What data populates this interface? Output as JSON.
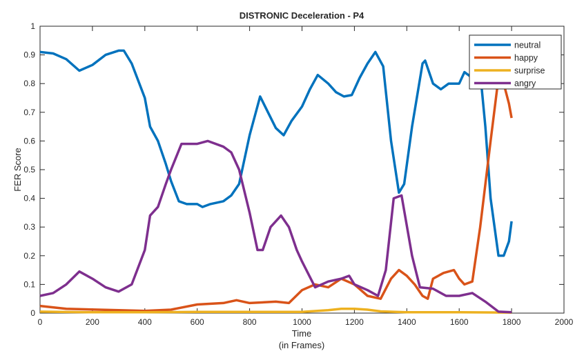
{
  "chart_data": {
    "type": "line",
    "title": "DISTRONIC Deceleration - P4",
    "xlabel": "Time",
    "xlabel2": "(in Frames)",
    "ylabel": "FER Score",
    "xlim": [
      0,
      2000
    ],
    "ylim": [
      0,
      1
    ],
    "xticks": [
      0,
      200,
      400,
      600,
      800,
      1000,
      1200,
      1400,
      1600,
      1800,
      2000
    ],
    "yticks": [
      0,
      0.1,
      0.2,
      0.3,
      0.4,
      0.5,
      0.6,
      0.7,
      0.8,
      0.9,
      1
    ],
    "legend_position": "top-right",
    "series": [
      {
        "name": "neutral",
        "color": "#0072BD",
        "x": [
          0,
          50,
          100,
          150,
          200,
          250,
          300,
          320,
          350,
          400,
          420,
          450,
          480,
          500,
          530,
          560,
          600,
          620,
          650,
          700,
          730,
          760,
          800,
          840,
          870,
          900,
          930,
          960,
          1000,
          1030,
          1060,
          1100,
          1130,
          1160,
          1190,
          1220,
          1250,
          1280,
          1310,
          1340,
          1370,
          1390,
          1420,
          1460,
          1470,
          1500,
          1530,
          1560,
          1600,
          1620,
          1650,
          1680,
          1700,
          1720,
          1750,
          1770,
          1790,
          1800
        ],
        "y": [
          0.91,
          0.905,
          0.885,
          0.845,
          0.865,
          0.9,
          0.915,
          0.915,
          0.87,
          0.75,
          0.65,
          0.6,
          0.52,
          0.46,
          0.39,
          0.38,
          0.38,
          0.37,
          0.38,
          0.39,
          0.41,
          0.45,
          0.62,
          0.755,
          0.7,
          0.645,
          0.62,
          0.67,
          0.72,
          0.78,
          0.83,
          0.8,
          0.77,
          0.755,
          0.76,
          0.82,
          0.87,
          0.91,
          0.86,
          0.6,
          0.42,
          0.45,
          0.65,
          0.87,
          0.88,
          0.8,
          0.78,
          0.8,
          0.8,
          0.84,
          0.82,
          0.84,
          0.65,
          0.4,
          0.2,
          0.2,
          0.25,
          0.32
        ]
      },
      {
        "name": "happy",
        "color": "#D95319",
        "x": [
          0,
          100,
          300,
          400,
          500,
          600,
          700,
          750,
          800,
          900,
          950,
          1000,
          1050,
          1100,
          1150,
          1200,
          1250,
          1300,
          1340,
          1370,
          1400,
          1430,
          1460,
          1480,
          1500,
          1540,
          1580,
          1600,
          1620,
          1650,
          1680,
          1720,
          1750,
          1770,
          1790,
          1800
        ],
        "y": [
          0.025,
          0.015,
          0.01,
          0.008,
          0.012,
          0.03,
          0.035,
          0.045,
          0.035,
          0.04,
          0.035,
          0.08,
          0.1,
          0.09,
          0.12,
          0.1,
          0.06,
          0.05,
          0.12,
          0.15,
          0.13,
          0.1,
          0.06,
          0.05,
          0.12,
          0.14,
          0.15,
          0.12,
          0.1,
          0.11,
          0.3,
          0.6,
          0.82,
          0.8,
          0.73,
          0.68
        ]
      },
      {
        "name": "surprise",
        "color": "#EDB120",
        "x": [
          0,
          200,
          400,
          600,
          800,
          1000,
          1100,
          1150,
          1200,
          1250,
          1300,
          1400,
          1600,
          1800
        ],
        "y": [
          0.005,
          0.003,
          0.003,
          0.004,
          0.004,
          0.004,
          0.01,
          0.015,
          0.015,
          0.012,
          0.006,
          0.003,
          0.003,
          0.002
        ]
      },
      {
        "name": "angry",
        "color": "#7E2F8E",
        "x": [
          0,
          50,
          100,
          150,
          200,
          250,
          300,
          350,
          400,
          420,
          450,
          480,
          500,
          540,
          600,
          640,
          700,
          730,
          760,
          800,
          830,
          850,
          880,
          920,
          950,
          980,
          1000,
          1050,
          1100,
          1150,
          1180,
          1200,
          1250,
          1290,
          1320,
          1350,
          1380,
          1420,
          1450,
          1500,
          1550,
          1600,
          1650,
          1700,
          1750,
          1800
        ],
        "y": [
          0.06,
          0.07,
          0.1,
          0.145,
          0.12,
          0.09,
          0.075,
          0.1,
          0.22,
          0.34,
          0.37,
          0.45,
          0.5,
          0.59,
          0.59,
          0.6,
          0.58,
          0.56,
          0.5,
          0.35,
          0.22,
          0.22,
          0.3,
          0.34,
          0.3,
          0.22,
          0.18,
          0.09,
          0.11,
          0.12,
          0.13,
          0.1,
          0.08,
          0.06,
          0.15,
          0.4,
          0.41,
          0.2,
          0.09,
          0.085,
          0.06,
          0.06,
          0.07,
          0.04,
          0.005,
          0.003
        ]
      }
    ]
  }
}
